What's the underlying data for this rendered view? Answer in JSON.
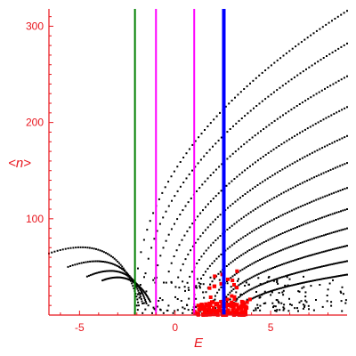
{
  "chart_data": {
    "type": "scatter",
    "xlabel": "E",
    "ylabel": "<n>",
    "xlim": [
      -6.6,
      9.0
    ],
    "ylim": [
      0,
      318
    ],
    "x_ticks": [
      {
        "value": -5,
        "label": "-5"
      },
      {
        "value": 0,
        "label": "0"
      },
      {
        "value": 5,
        "label": "5"
      }
    ],
    "y_ticks": [
      {
        "value": 100,
        "label": "100"
      },
      {
        "value": 200,
        "label": "200"
      },
      {
        "value": 300,
        "label": "300"
      }
    ],
    "grid": false,
    "colors": {
      "axis": "#e8141c",
      "points": "#000000",
      "highlight": "#ff0000",
      "green": "#008000",
      "magenta": "#ff00ff",
      "blue": "#0000ff"
    },
    "vertical_lines": [
      {
        "x": -2.1,
        "color": "#008000",
        "width": 2
      },
      {
        "x": -1.0,
        "color": "#ff00ff",
        "width": 2
      },
      {
        "x": 1.0,
        "color": "#ff00ff",
        "width": 2
      },
      {
        "x": 2.55,
        "color": "#0000ff",
        "width": 4
      }
    ],
    "upper_bands": [
      {
        "x0": -2.1,
        "y0": 2,
        "x1": 9.0,
        "y1": 316,
        "bow": 0.45
      },
      {
        "x0": -1.7,
        "y0": 2,
        "x1": 9.0,
        "y1": 282,
        "bow": 0.45
      },
      {
        "x0": -1.2,
        "y0": 2,
        "x1": 9.0,
        "y1": 248,
        "bow": 0.45
      },
      {
        "x0": -0.6,
        "y0": 2,
        "x1": 9.0,
        "y1": 216,
        "bow": 0.45
      },
      {
        "x0": -0.1,
        "y0": 2,
        "x1": 9.0,
        "y1": 186,
        "bow": 0.45
      },
      {
        "x0": 0.4,
        "y0": 2,
        "x1": 9.0,
        "y1": 158,
        "bow": 0.45
      },
      {
        "x0": 0.9,
        "y0": 2,
        "x1": 9.0,
        "y1": 132,
        "bow": 0.45
      },
      {
        "x0": 1.4,
        "y0": 2,
        "x1": 9.0,
        "y1": 110,
        "bow": 0.45
      },
      {
        "x0": 1.9,
        "y0": 2,
        "x1": 9.0,
        "y1": 90,
        "bow": 0.45
      },
      {
        "x0": 2.4,
        "y0": 2,
        "x1": 9.0,
        "y1": 72,
        "bow": 0.45
      },
      {
        "x0": 2.9,
        "y0": 2,
        "x1": 9.0,
        "y1": 56,
        "bow": 0.45
      },
      {
        "x0": 3.4,
        "y0": 2,
        "x1": 9.0,
        "y1": 42,
        "bow": 0.45
      }
    ],
    "left_arcs": [
      {
        "x0": -6.6,
        "y0": 64,
        "xp": -2.8,
        "yp": 90,
        "x1": -1.9,
        "y1": 10
      },
      {
        "x0": -5.6,
        "y0": 50,
        "xp": -2.5,
        "yp": 72,
        "x1": -1.7,
        "y1": 12
      },
      {
        "x0": -4.6,
        "y0": 40,
        "xp": -2.3,
        "yp": 60,
        "x1": -1.5,
        "y1": 12
      },
      {
        "x0": -3.8,
        "y0": 36,
        "xp": -2.2,
        "yp": 48,
        "x1": -1.3,
        "y1": 14
      }
    ],
    "low_cloud": {
      "x_min": -2.1,
      "x_max": 9.0,
      "y_min": 4,
      "y_max": 40,
      "count": 190
    },
    "red_cluster": {
      "x_min": 1.0,
      "x_max": 3.8,
      "y_min": 0,
      "y_max": 14,
      "count": 160
    },
    "red_scatter": {
      "x_min": 1.8,
      "x_max": 4.2,
      "y_min": 10,
      "y_max": 48,
      "count": 20
    }
  }
}
